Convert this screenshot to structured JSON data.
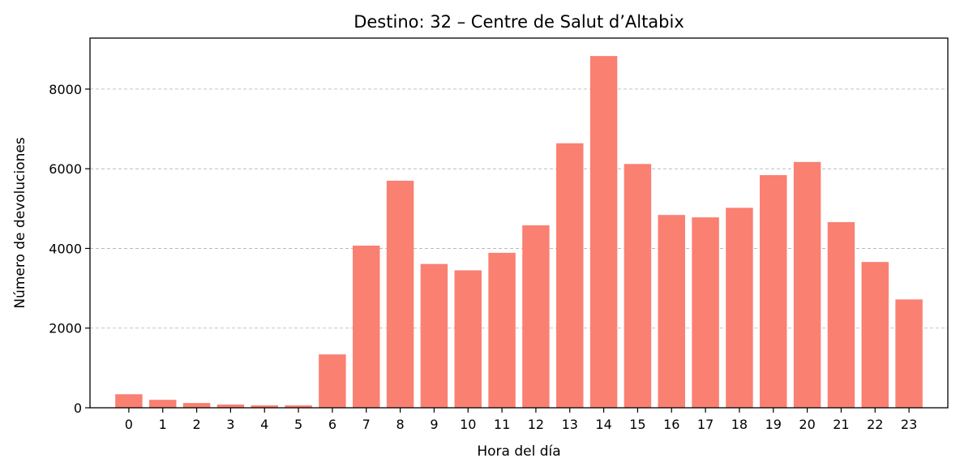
{
  "chart_data": {
    "type": "bar",
    "title": "Destino: 32 – Centre de Salut d’Altabix",
    "xlabel": "Hora del día",
    "ylabel": "Número de devoluciones",
    "categories": [
      "0",
      "1",
      "2",
      "3",
      "4",
      "5",
      "6",
      "7",
      "8",
      "9",
      "10",
      "11",
      "12",
      "13",
      "14",
      "15",
      "16",
      "17",
      "18",
      "19",
      "20",
      "21",
      "22",
      "23"
    ],
    "values": [
      340,
      200,
      120,
      80,
      60,
      60,
      1340,
      4070,
      5700,
      3610,
      3450,
      3890,
      4580,
      6640,
      8830,
      6120,
      4840,
      4780,
      5020,
      5840,
      6170,
      4660,
      3660,
      2720
    ],
    "ylim": [
      0,
      9280
    ],
    "yticks": [
      0,
      2000,
      4000,
      6000,
      8000
    ],
    "grid": "y-dashed",
    "bar_color": "#fa8072"
  }
}
